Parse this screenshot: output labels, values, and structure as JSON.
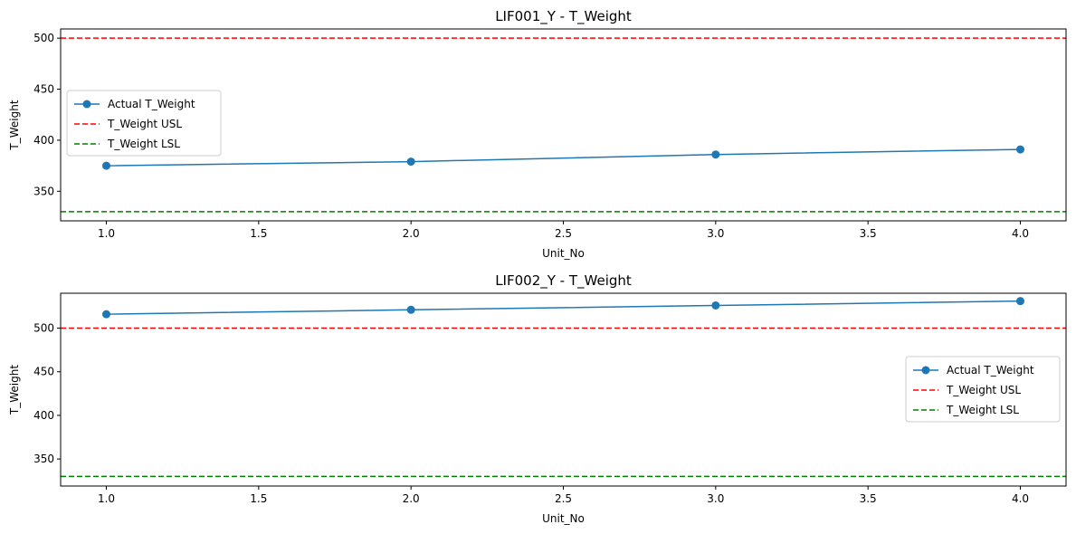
{
  "chart_data": [
    {
      "type": "line",
      "title": "LIF001_Y - T_Weight",
      "xlabel": "Unit_No",
      "ylabel": "T_Weight",
      "xlim": [
        0.85,
        4.15
      ],
      "ylim": [
        321,
        509
      ],
      "xticks": [
        "1.0",
        "1.5",
        "2.0",
        "2.5",
        "3.0",
        "3.5",
        "4.0"
      ],
      "yticks": [
        "350",
        "400",
        "450",
        "500"
      ],
      "grid": false,
      "legend_position": "center-left",
      "series": [
        {
          "name": "Actual T_Weight",
          "color": "#1f77b4",
          "style": "solid-marker",
          "x": [
            1,
            2,
            3,
            4
          ],
          "y": [
            375,
            379,
            386,
            391
          ]
        },
        {
          "name": "T_Weight USL",
          "color": "#ff0000",
          "style": "dashed",
          "y_constant": 500
        },
        {
          "name": "T_Weight LSL",
          "color": "#008000",
          "style": "dashed",
          "y_constant": 330
        }
      ]
    },
    {
      "type": "line",
      "title": "LIF002_Y - T_Weight",
      "xlabel": "Unit_No",
      "ylabel": "T_Weight",
      "xlim": [
        0.85,
        4.15
      ],
      "ylim": [
        319,
        540
      ],
      "xticks": [
        "1.0",
        "1.5",
        "2.0",
        "2.5",
        "3.0",
        "3.5",
        "4.0"
      ],
      "yticks": [
        "350",
        "400",
        "450",
        "500"
      ],
      "grid": false,
      "legend_position": "center-right",
      "series": [
        {
          "name": "Actual T_Weight",
          "color": "#1f77b4",
          "style": "solid-marker",
          "x": [
            1,
            2,
            3,
            4
          ],
          "y": [
            516,
            521,
            526,
            531
          ]
        },
        {
          "name": "T_Weight USL",
          "color": "#ff0000",
          "style": "dashed",
          "y_constant": 500
        },
        {
          "name": "T_Weight LSL",
          "color": "#008000",
          "style": "dashed",
          "y_constant": 330
        }
      ]
    }
  ]
}
